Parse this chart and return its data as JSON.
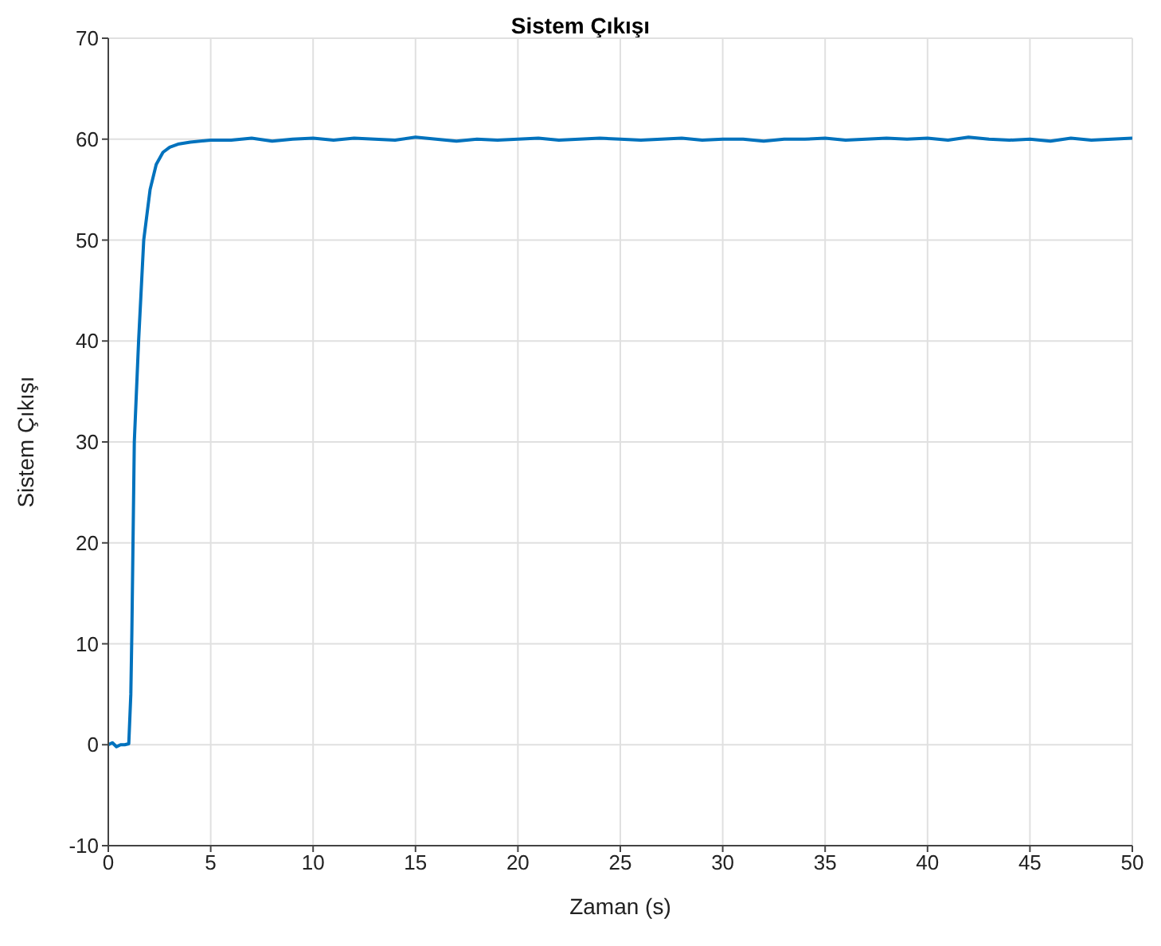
{
  "chart_data": {
    "type": "line",
    "title": "Sistem Çıkışı",
    "xlabel": "Zaman (s)",
    "ylabel": "Sistem Çıkışı",
    "xlim": [
      0,
      50
    ],
    "ylim": [
      -10,
      70
    ],
    "xticks": [
      0,
      5,
      10,
      15,
      20,
      25,
      30,
      35,
      40,
      45,
      50
    ],
    "yticks": [
      -10,
      0,
      10,
      20,
      30,
      40,
      50,
      60,
      70
    ],
    "grid": true,
    "marker": "none",
    "line_style": "solid",
    "series": [
      {
        "color": "#0072bd",
        "x": [
          0,
          0.2,
          0.4,
          0.6,
          0.8,
          1.0,
          1.1,
          1.15,
          1.27,
          1.48,
          1.73,
          2.04,
          2.34,
          2.67,
          3.0,
          3.4,
          4.0,
          5.0,
          6.0,
          7.0,
          8.0,
          9.0,
          10.0,
          11.0,
          12.0,
          13.0,
          14.0,
          15.0,
          16.0,
          17.0,
          18.0,
          19.0,
          20.0,
          21.0,
          22.0,
          23.0,
          24.0,
          25.0,
          26.0,
          27.0,
          28.0,
          29.0,
          30.0,
          31.0,
          32.0,
          33.0,
          34.0,
          35.0,
          36.0,
          37.0,
          38.0,
          39.0,
          40.0,
          41.0,
          42.0,
          43.0,
          44.0,
          45.0,
          46.0,
          47.0,
          48.0,
          49.0,
          50.0
        ],
        "values": [
          0,
          0.2,
          -0.2,
          0,
          0,
          0.1,
          5,
          11,
          30,
          40,
          50,
          55,
          57.5,
          58.7,
          59.2,
          59.5,
          59.7,
          59.9,
          59.9,
          60.1,
          59.8,
          60.0,
          60.1,
          59.9,
          60.1,
          60.0,
          59.9,
          60.2,
          60.0,
          59.8,
          60.0,
          59.9,
          60.0,
          60.1,
          59.9,
          60.0,
          60.1,
          60.0,
          59.9,
          60.0,
          60.1,
          59.9,
          60.0,
          60.0,
          59.8,
          60.0,
          60.0,
          60.1,
          59.9,
          60.0,
          60.1,
          60.0,
          60.1,
          59.9,
          60.2,
          60.0,
          59.9,
          60.0,
          59.8,
          60.1,
          59.9,
          60.0,
          60.1
        ]
      }
    ]
  }
}
